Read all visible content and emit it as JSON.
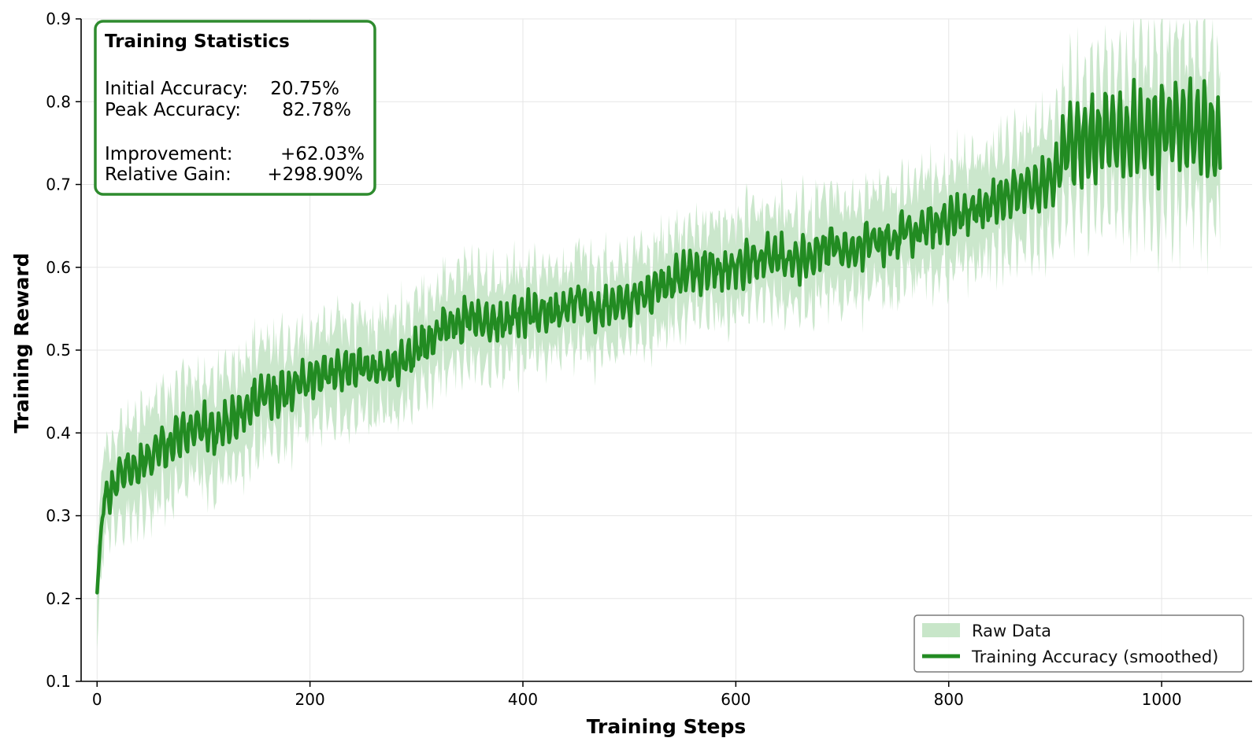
{
  "colors": {
    "raw_fill": "#c8e6c9",
    "line": "#228b22",
    "box_border": "#2e8b2e",
    "grid": "#e6e6e6",
    "legend_border": "#7a7a7a"
  },
  "stats_box": {
    "title": "Training Statistics",
    "rows": [
      {
        "label": "Initial Accuracy:",
        "value": "20.75%"
      },
      {
        "label": "Peak Accuracy:",
        "value": "82.78%"
      },
      {
        "label": "Improvement:",
        "value": "+62.03%"
      },
      {
        "label": "Relative Gain:",
        "value": "+298.90%"
      }
    ]
  },
  "legend": {
    "raw_label": "Raw Data",
    "line_label": "Training Accuracy (smoothed)",
    "placement": "lower-right"
  },
  "chart_data": {
    "type": "line",
    "title": "",
    "xlabel": "Training Steps",
    "ylabel": "Training Reward",
    "xlim": [
      -15,
      1085
    ],
    "ylim": [
      0.1,
      0.9
    ],
    "xticks": [
      0,
      200,
      400,
      600,
      800,
      1000
    ],
    "yticks": [
      0.1,
      0.2,
      0.3,
      0.4,
      0.5,
      0.6,
      0.7,
      0.8,
      0.9
    ],
    "grid": true,
    "step_count": 1055,
    "series": [
      {
        "name": "Training Accuracy (smoothed)",
        "kind": "line",
        "x": [
          0,
          5,
          10,
          20,
          30,
          40,
          50,
          60,
          70,
          80,
          90,
          100,
          110,
          120,
          130,
          140,
          150,
          160,
          170,
          180,
          190,
          200,
          210,
          220,
          230,
          240,
          250,
          260,
          270,
          280,
          290,
          300,
          310,
          320,
          330,
          340,
          350,
          360,
          370,
          380,
          390,
          400,
          410,
          420,
          430,
          440,
          450,
          460,
          470,
          480,
          490,
          500,
          510,
          520,
          530,
          540,
          550,
          560,
          570,
          580,
          590,
          600,
          610,
          620,
          630,
          640,
          650,
          660,
          670,
          680,
          690,
          700,
          710,
          720,
          730,
          740,
          750,
          760,
          770,
          780,
          790,
          800,
          810,
          820,
          830,
          840,
          850,
          860,
          870,
          880,
          890,
          900,
          910,
          920,
          930,
          940,
          950,
          960,
          970,
          980,
          990,
          1000,
          1010,
          1020,
          1030,
          1040,
          1050,
          1055
        ],
        "y": [
          0.207,
          0.31,
          0.325,
          0.345,
          0.355,
          0.36,
          0.372,
          0.38,
          0.39,
          0.395,
          0.405,
          0.41,
          0.4,
          0.415,
          0.42,
          0.43,
          0.44,
          0.445,
          0.448,
          0.452,
          0.46,
          0.465,
          0.47,
          0.472,
          0.478,
          0.48,
          0.48,
          0.475,
          0.478,
          0.485,
          0.49,
          0.5,
          0.51,
          0.52,
          0.53,
          0.535,
          0.54,
          0.538,
          0.533,
          0.535,
          0.54,
          0.543,
          0.545,
          0.55,
          0.545,
          0.548,
          0.565,
          0.55,
          0.548,
          0.552,
          0.555,
          0.56,
          0.565,
          0.57,
          0.575,
          0.582,
          0.59,
          0.595,
          0.598,
          0.598,
          0.595,
          0.598,
          0.605,
          0.61,
          0.615,
          0.612,
          0.608,
          0.61,
          0.615,
          0.62,
          0.625,
          0.62,
          0.62,
          0.625,
          0.628,
          0.63,
          0.635,
          0.64,
          0.645,
          0.648,
          0.652,
          0.658,
          0.66,
          0.665,
          0.67,
          0.675,
          0.685,
          0.69,
          0.695,
          0.7,
          0.705,
          0.712,
          0.745,
          0.75,
          0.755,
          0.755,
          0.758,
          0.76,
          0.76,
          0.762,
          0.762,
          0.765,
          0.765,
          0.768,
          0.765,
          0.765,
          0.765,
          0.728
        ]
      },
      {
        "name": "Raw Data",
        "kind": "band",
        "note_range": "raw values spread around the smoothed curve",
        "spread_x": [
          0,
          50,
          100,
          200,
          300,
          400,
          500,
          600,
          700,
          800,
          900,
          1000,
          1055
        ],
        "spread": [
          0.06,
          0.07,
          0.07,
          0.065,
          0.065,
          0.06,
          0.06,
          0.06,
          0.065,
          0.07,
          0.075,
          0.11,
          0.11
        ]
      }
    ]
  }
}
